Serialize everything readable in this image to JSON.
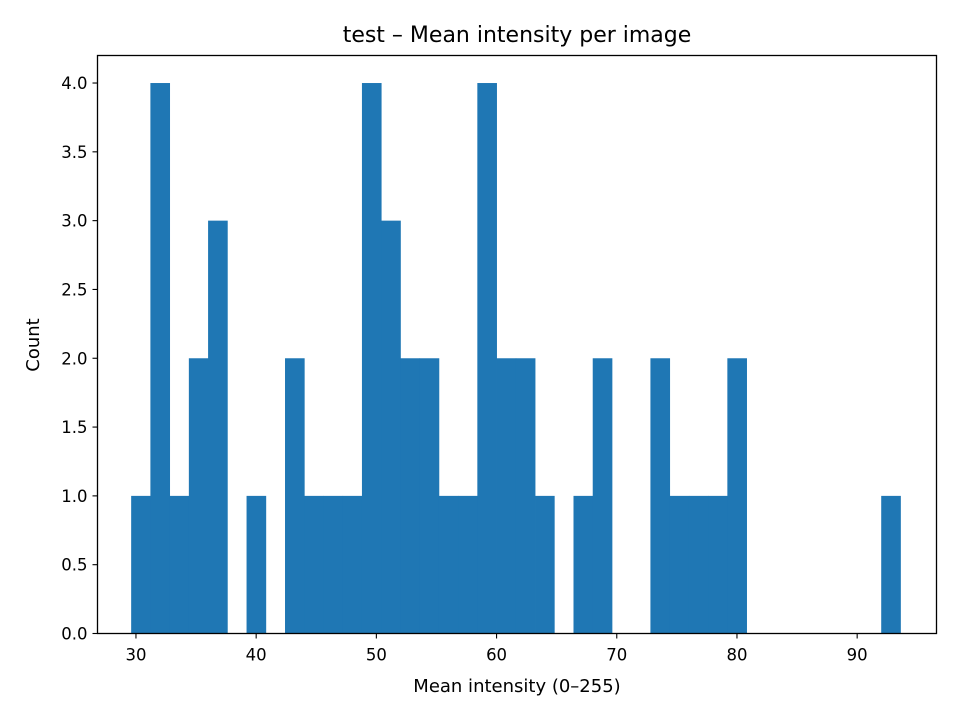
{
  "chart_data": {
    "type": "bar",
    "title": "test – Mean intensity per image",
    "xlabel": "Mean intensity (0–255)",
    "ylabel": "Count",
    "xlim": [
      26.8,
      96.6
    ],
    "ylim": [
      0,
      4.2
    ],
    "xticks": [
      30,
      40,
      50,
      60,
      70,
      80,
      90
    ],
    "yticks": [
      0.0,
      0.5,
      1.0,
      1.5,
      2.0,
      2.5,
      3.0,
      3.5,
      4.0
    ],
    "bin_start": 29.6,
    "bin_width": 1.6,
    "values": [
      1,
      4,
      1,
      2,
      3,
      0,
      1,
      0,
      2,
      1,
      1,
      1,
      4,
      3,
      2,
      2,
      1,
      1,
      4,
      2,
      2,
      1,
      0,
      1,
      2,
      0,
      0,
      2,
      1,
      1,
      1,
      2,
      0,
      0,
      0,
      0,
      0,
      0,
      0,
      1
    ],
    "bar_color": "#1f77b4",
    "grid": false,
    "legend": "none"
  }
}
